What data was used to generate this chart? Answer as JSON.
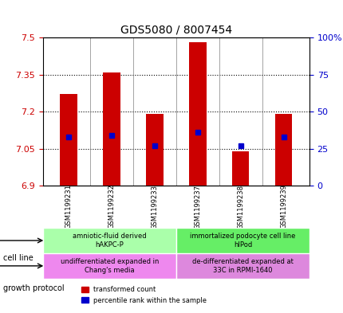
{
  "title": "GDS5080 / 8007454",
  "samples": [
    "GSM1199231",
    "GSM1199232",
    "GSM1199233",
    "GSM1199237",
    "GSM1199238",
    "GSM1199239"
  ],
  "transformed_counts": [
    7.27,
    7.36,
    7.19,
    7.48,
    7.04,
    7.19
  ],
  "percentile_ranks": [
    33,
    34,
    27,
    36,
    27,
    33
  ],
  "y_min": 6.9,
  "y_max": 7.5,
  "y_ticks": [
    6.9,
    7.05,
    7.2,
    7.35,
    7.5
  ],
  "y_tick_labels": [
    "6.9",
    "7.05",
    "7.2",
    "7.35",
    "7.5"
  ],
  "right_y_ticks": [
    0,
    25,
    50,
    75,
    100
  ],
  "right_y_labels": [
    "0",
    "25",
    "50",
    "75",
    "100%"
  ],
  "bar_color": "#cc0000",
  "percentile_color": "#0000cc",
  "bar_width": 0.4,
  "cell_line_groups": [
    {
      "label": "amniotic-fluid derived\nhAKPC-P",
      "samples": [
        "GSM1199231",
        "GSM1199232",
        "GSM1199233"
      ],
      "color": "#aaffaa"
    },
    {
      "label": "immortalized podocyte cell line\nhIPod",
      "samples": [
        "GSM1199237",
        "GSM1199238",
        "GSM1199239"
      ],
      "color": "#66ee66"
    }
  ],
  "growth_protocol_groups": [
    {
      "label": "undifferentiated expanded in\nChang's media",
      "samples": [
        "GSM1199231",
        "GSM1199232",
        "GSM1199233"
      ],
      "color": "#ee88ee"
    },
    {
      "label": "de-differentiated expanded at\n33C in RPMI-1640",
      "samples": [
        "GSM1199237",
        "GSM1199238",
        "GSM1199239"
      ],
      "color": "#dd88dd"
    }
  ],
  "legend_labels": [
    "transformed count",
    "percentile rank within the sample"
  ],
  "cell_line_label": "cell line",
  "growth_protocol_label": "growth protocol",
  "left_axis_color": "#cc0000",
  "right_axis_color": "#0000cc"
}
